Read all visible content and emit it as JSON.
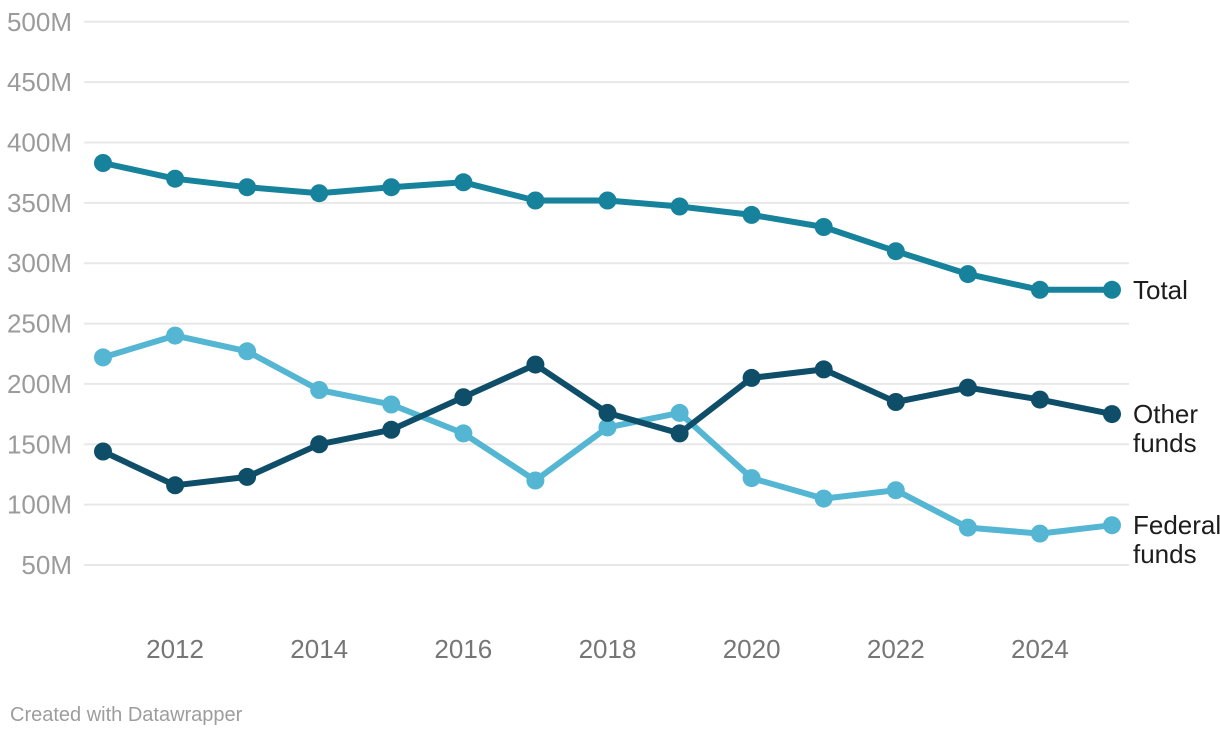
{
  "chart_data": {
    "type": "line",
    "title": "",
    "xlabel": "",
    "ylabel": "",
    "x": [
      2011,
      2012,
      2013,
      2014,
      2015,
      2016,
      2017,
      2018,
      2019,
      2020,
      2021,
      2022,
      2023,
      2024,
      2025
    ],
    "xlim": [
      2011,
      2025
    ],
    "ylim": [
      50,
      500
    ],
    "grid": "horizontal",
    "legend_position": "end-of-line-labels",
    "x_ticks": [
      {
        "value": 2012,
        "label": "2012"
      },
      {
        "value": 2014,
        "label": "2014"
      },
      {
        "value": 2016,
        "label": "2016"
      },
      {
        "value": 2018,
        "label": "2018"
      },
      {
        "value": 2020,
        "label": "2020"
      },
      {
        "value": 2022,
        "label": "2022"
      },
      {
        "value": 2024,
        "label": "2024"
      }
    ],
    "y_ticks": [
      {
        "value": 500,
        "label": "500M"
      },
      {
        "value": 450,
        "label": "450M"
      },
      {
        "value": 400,
        "label": "400M"
      },
      {
        "value": 350,
        "label": "350M"
      },
      {
        "value": 300,
        "label": "300M"
      },
      {
        "value": 250,
        "label": "250M"
      },
      {
        "value": 200,
        "label": "200M"
      },
      {
        "value": 150,
        "label": "150M"
      },
      {
        "value": 100,
        "label": "100M"
      },
      {
        "value": 50,
        "label": "50M"
      }
    ],
    "series": [
      {
        "name": "Total",
        "label_lines": [
          "Total"
        ],
        "color": "#16829C",
        "unit": "M",
        "values": [
          383,
          370,
          363,
          358,
          363,
          367,
          352,
          352,
          347,
          340,
          330,
          310,
          291,
          278,
          278
        ]
      },
      {
        "name": "Federal funds",
        "label_lines": [
          "Federal",
          "funds"
        ],
        "color": "#54B6D3",
        "unit": "M",
        "values": [
          222,
          240,
          227,
          195,
          183,
          159,
          120,
          164,
          176,
          122,
          105,
          112,
          81,
          76,
          83
        ]
      },
      {
        "name": "Other funds",
        "label_lines": [
          "Other",
          "funds"
        ],
        "color": "#0E4E68",
        "unit": "M",
        "values": [
          144,
          116,
          123,
          150,
          162,
          189,
          216,
          176,
          159,
          205,
          212,
          185,
          197,
          187,
          175
        ]
      }
    ]
  },
  "style": {
    "background": "#FFFFFF",
    "grid_color": "#E8E8E8",
    "y_tick_color": "#9B9B9B",
    "x_tick_color": "#767676",
    "series_label_color": "#1D1D1D",
    "footer_color": "#9D9D9D"
  },
  "footer": {
    "attribution": "Created with Datawrapper"
  }
}
